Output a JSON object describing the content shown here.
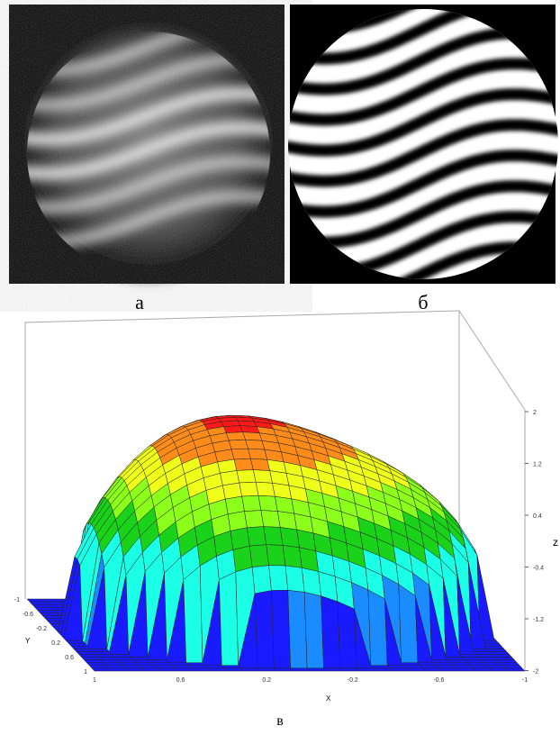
{
  "panels": [
    {
      "label": "а"
    },
    {
      "label": "б"
    }
  ],
  "plot": {
    "label": "в",
    "z_axis": {
      "label": "z",
      "ticks": [
        "2",
        "1.2",
        "0.4",
        "-0.4",
        "-1.2",
        "-2"
      ]
    },
    "y_axis": {
      "label": "Y",
      "ticks": [
        "-1",
        "-0.6",
        "-0.2",
        "0.2",
        "0.6",
        "1"
      ]
    },
    "x_axis": {
      "label": "X",
      "ticks": [
        "1",
        "0.6",
        "0.2",
        "-0.2",
        "-0.6",
        "-1"
      ]
    }
  }
}
